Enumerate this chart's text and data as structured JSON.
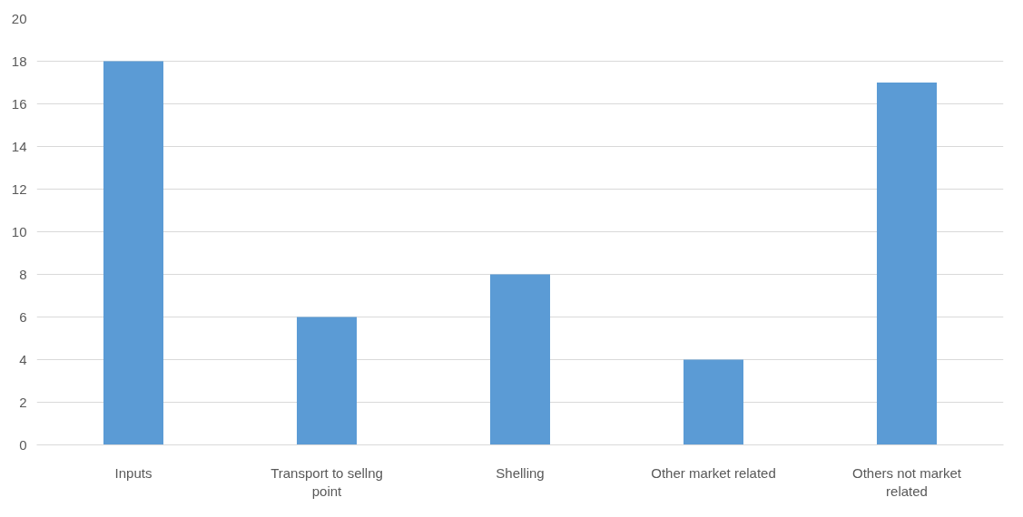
{
  "chart_data": {
    "type": "bar",
    "categories": [
      "Inputs",
      "Transport to sellng point",
      "Shelling",
      "Other market related",
      "Others not market related"
    ],
    "values": [
      18,
      6,
      8,
      4,
      17
    ],
    "color": "#5b9bd5",
    "ylim": [
      0,
      20
    ],
    "yticks": [
      0,
      2,
      4,
      6,
      8,
      10,
      12,
      14,
      16,
      18,
      20
    ],
    "grid": "y"
  }
}
